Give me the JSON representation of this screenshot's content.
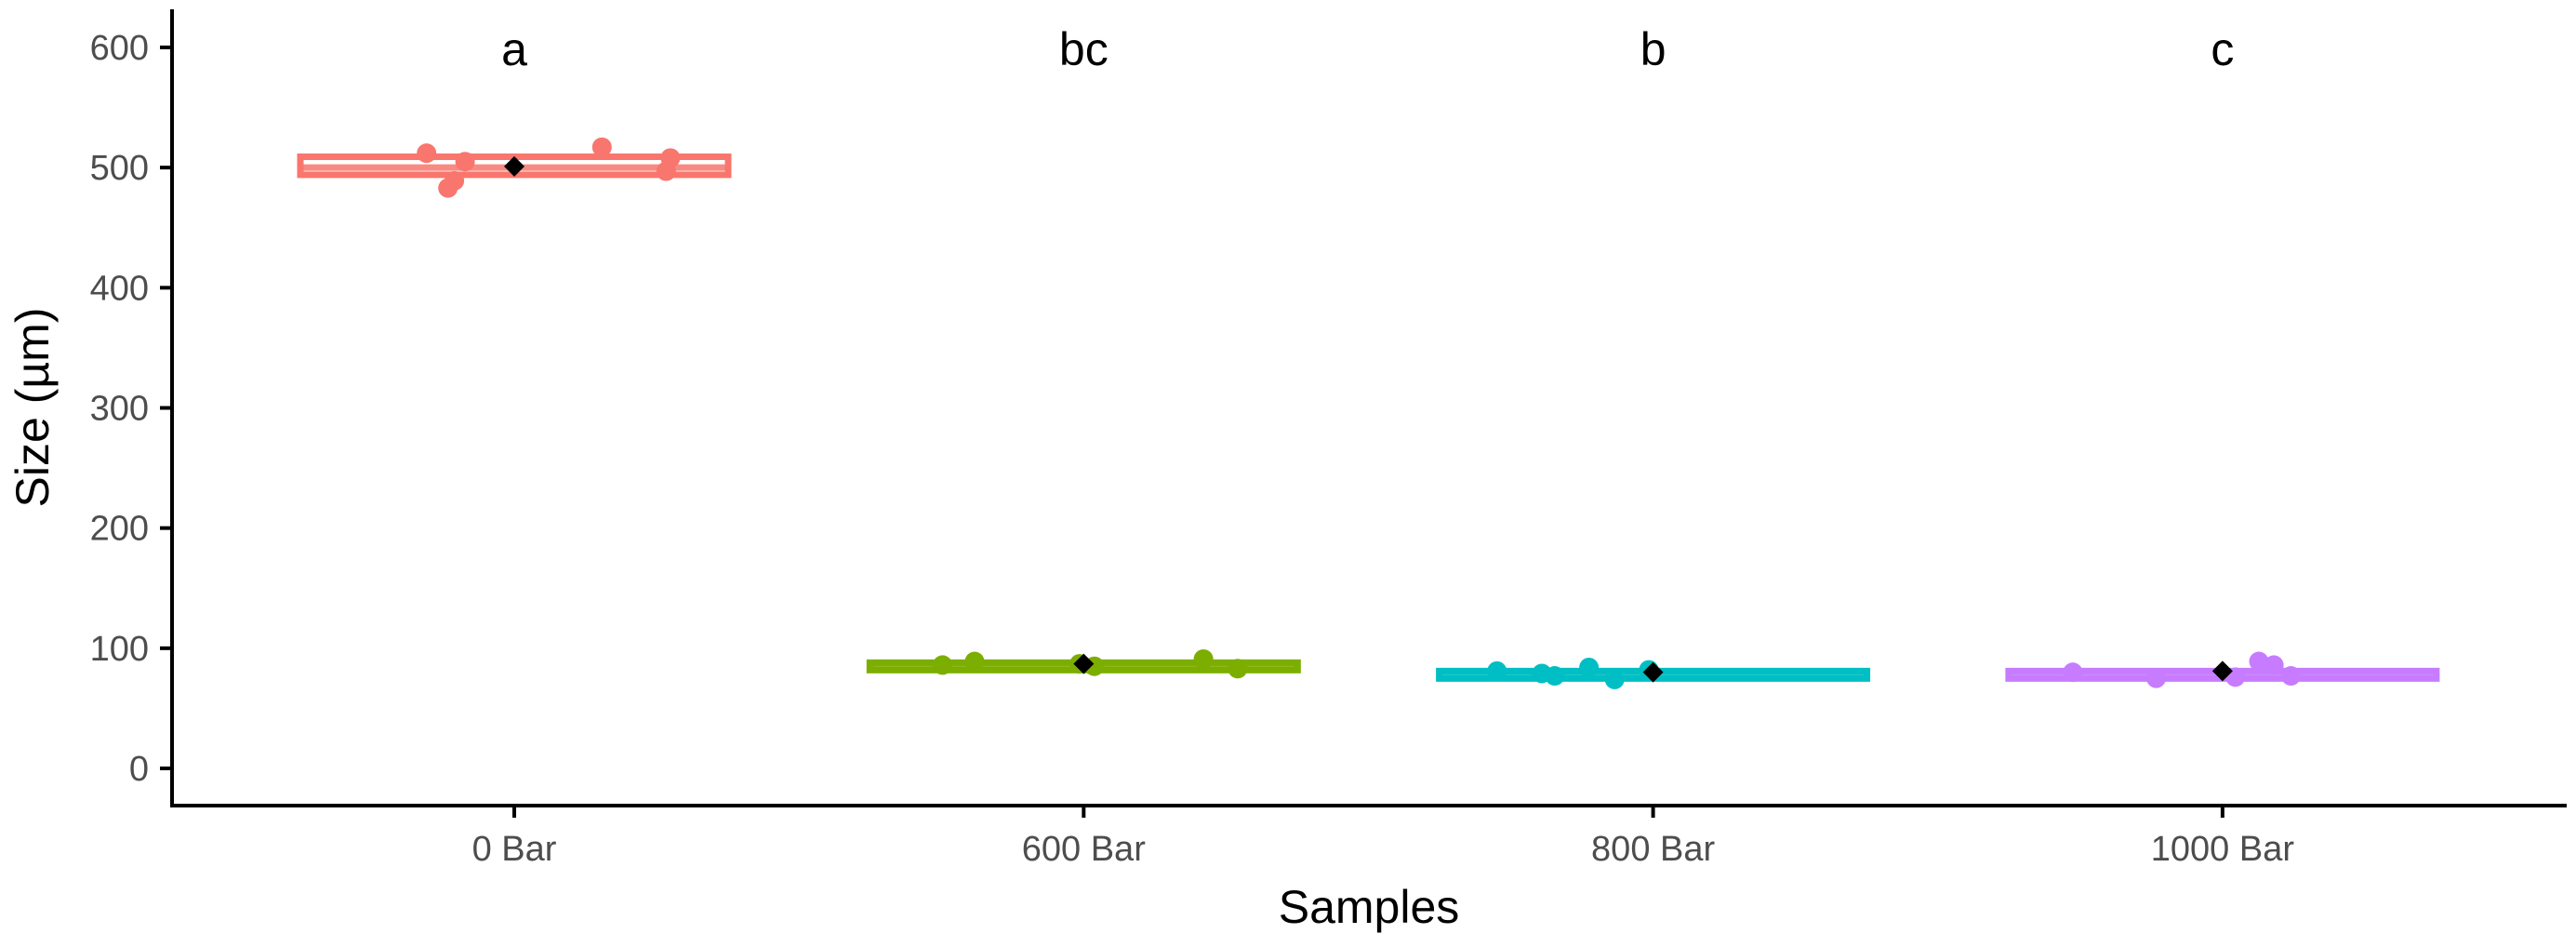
{
  "chart_data": {
    "type": "box",
    "title": "",
    "xlabel": "Samples",
    "ylabel": "Size (µm)",
    "ylim": [
      -30,
      630
    ],
    "yticks": [
      0,
      100,
      200,
      300,
      400,
      500,
      600
    ],
    "categories": [
      "0 Bar",
      "600 Bar",
      "800 Bar",
      "1000 Bar"
    ],
    "colors": [
      "#F8766D",
      "#7CAE00",
      "#00BFC4",
      "#C77CFF"
    ],
    "box_stats": [
      {
        "q1": 494,
        "median": 500,
        "q3": 509,
        "mean": 501
      },
      {
        "q1": 85,
        "median": 87,
        "q3": 88,
        "mean": 87
      },
      {
        "q1": 79,
        "median": 80,
        "q3": 81,
        "mean": 80
      },
      {
        "q1": 78,
        "median": 80,
        "q3": 81,
        "mean": 81
      }
    ],
    "points": [
      {
        "category": "0 Bar",
        "values": [
          512,
          483,
          505,
          489,
          517,
          497,
          508
        ]
      },
      {
        "category": "600 Bar",
        "values": [
          86,
          89,
          87,
          91,
          85,
          83
        ]
      },
      {
        "category": "800 Bar",
        "values": [
          81,
          79,
          77,
          84,
          74,
          82
        ]
      },
      {
        "category": "1000 Bar",
        "values": [
          80,
          75,
          89,
          76,
          86,
          77
        ]
      }
    ],
    "significance_letters": [
      "a",
      "bc",
      "b",
      "c"
    ],
    "grid": false,
    "legend": "none"
  }
}
